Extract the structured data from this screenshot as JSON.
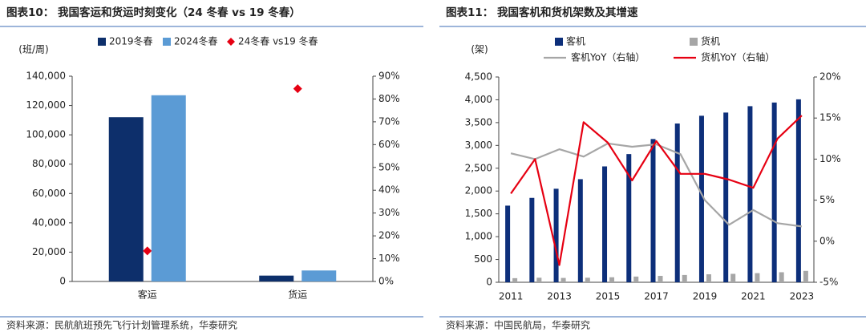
{
  "chart_data": [
    {
      "type": "bar",
      "title": "图表10： 我国客运和货运时刻变化（24 冬春 vs 19 冬春）",
      "y_label": "(班/周)",
      "source": "资料来源：民航航班预先飞行计划管理系统，华泰研究",
      "categories": [
        "客运",
        "货运"
      ],
      "series": [
        {
          "name": "2019冬春",
          "type": "bar",
          "color": "#0d2f6b",
          "values": [
            112000,
            4000
          ]
        },
        {
          "name": "2024冬春",
          "type": "bar",
          "color": "#5b9bd5",
          "values": [
            127000,
            7500
          ]
        },
        {
          "name": "24冬春 vs19 冬春",
          "type": "scatter",
          "marker": "diamond",
          "color": "#e60012",
          "axis": "y2",
          "values": [
            13.4,
            84.5
          ]
        }
      ],
      "ylim": [
        0,
        140000
      ],
      "yticks": [
        0,
        {
          "value": 20000,
          "label": "20,000"
        },
        {
          "value": 40000,
          "label": "40,000"
        },
        {
          "value": 60000,
          "label": "60,000"
        },
        {
          "value": 80000,
          "label": "80,000"
        },
        {
          "value": 100000,
          "label": "100,000"
        },
        {
          "value": 120000,
          "label": "120,000"
        },
        {
          "value": 140000,
          "label": "140,000"
        }
      ],
      "y2lim": [
        0,
        90
      ],
      "y2ticks": [
        {
          "value": 0,
          "label": "0%"
        },
        {
          "value": 10,
          "label": "10%"
        },
        {
          "value": 20,
          "label": "20%"
        },
        {
          "value": 30,
          "label": "30%"
        },
        {
          "value": 40,
          "label": "40%"
        },
        {
          "value": 50,
          "label": "50%"
        },
        {
          "value": 60,
          "label": "60%"
        },
        {
          "value": 70,
          "label": "70%"
        },
        {
          "value": 80,
          "label": "80%"
        },
        {
          "value": 90,
          "label": "90%"
        }
      ]
    },
    {
      "type": "bar",
      "title": "图表11： 我国客机和货机架数及其增速",
      "y_label": "(架)",
      "source": "资料来源：中国民航局，华泰研究",
      "categories": [
        "2011",
        null,
        "2013",
        null,
        "2015",
        null,
        "2017",
        null,
        "2019",
        null,
        "2021",
        null,
        "2023"
      ],
      "series": [
        {
          "name": "客机",
          "type": "bar",
          "color": "#0d2f7a",
          "values": [
            1680,
            1850,
            2050,
            2260,
            2540,
            2810,
            3140,
            3480,
            3650,
            3720,
            3860,
            3940,
            4010
          ]
        },
        {
          "name": "货机",
          "type": "bar",
          "color": "#a6a6a6",
          "values": [
            90,
            100,
            95,
            100,
            110,
            125,
            140,
            160,
            175,
            185,
            200,
            220,
            250
          ]
        },
        {
          "name": "客机YoY（右轴）",
          "type": "line",
          "color": "#a6a6a6",
          "axis": "y2",
          "values": [
            10.7,
            10,
            11.2,
            10.3,
            11.9,
            11.5,
            11.8,
            10.6,
            5,
            2,
            3.8,
            2.2,
            1.8
          ]
        },
        {
          "name": "货机YoY（右轴）",
          "type": "line",
          "color": "#e60012",
          "axis": "y2",
          "values": [
            5.8,
            10,
            -2.9,
            14.5,
            12,
            7.4,
            12.2,
            8.2,
            8.2,
            7.5,
            6.5,
            12.5,
            15.3
          ]
        }
      ],
      "ylim": [
        0,
        4500
      ],
      "yticks": [
        0,
        500,
        {
          "value": 1000,
          "label": "1,000"
        },
        {
          "value": 1500,
          "label": "1,500"
        },
        {
          "value": 2000,
          "label": "2,000"
        },
        {
          "value": 2500,
          "label": "2,500"
        },
        {
          "value": 3000,
          "label": "3,000"
        },
        {
          "value": 3500,
          "label": "3,500"
        },
        {
          "value": 4000,
          "label": "4,000"
        },
        {
          "value": 4500,
          "label": "4,500"
        }
      ],
      "y2lim": [
        -5,
        20
      ],
      "y2ticks": [
        {
          "value": -5,
          "label": "-5%"
        },
        {
          "value": 0,
          "label": "0%"
        },
        {
          "value": 5,
          "label": "5%"
        },
        {
          "value": 10,
          "label": "10%"
        },
        {
          "value": 15,
          "label": "15%"
        },
        {
          "value": 20,
          "label": "20%"
        }
      ]
    }
  ]
}
